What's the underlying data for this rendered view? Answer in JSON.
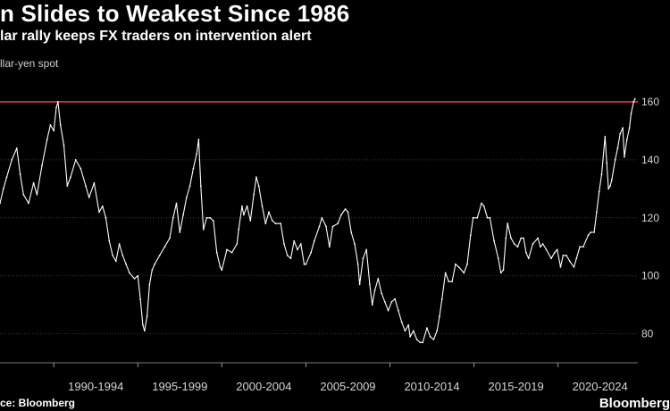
{
  "header": {
    "title": "n Slides to Weakest Since 1986",
    "subtitle": "lar rally keeps FX traders on intervention alert",
    "series_label": "llar-yen spot"
  },
  "footer": {
    "source": "ce: Bloomberg",
    "brand": "Bloomberg"
  },
  "colors": {
    "background": "#000000",
    "line": "#ffffff",
    "reference_line": "#e8364f",
    "grid": "#3a3a3a",
    "axis_text": "#d6d6d6"
  },
  "chart_data": {
    "type": "line",
    "title": "",
    "xlabel": "",
    "ylabel": "",
    "x_range": [
      1986.8,
      2024.75
    ],
    "ylim": [
      70,
      168
    ],
    "y_ticks": [
      {
        "value": 80,
        "label": "80"
      },
      {
        "value": 100,
        "label": "100"
      },
      {
        "value": 120,
        "label": "120"
      },
      {
        "value": 140,
        "label": "140"
      },
      {
        "value": 160,
        "label": "160"
      }
    ],
    "x_tick_marks": [
      1990,
      1995,
      2000,
      2005,
      2010,
      2015,
      2020
    ],
    "x_categories": [
      {
        "label": "1990-1994",
        "start": 1990,
        "end": 1995
      },
      {
        "label": "1995-1999",
        "start": 1995,
        "end": 2000
      },
      {
        "label": "2000-2004",
        "start": 2000,
        "end": 2005
      },
      {
        "label": "2005-2009",
        "start": 2005,
        "end": 2010
      },
      {
        "label": "2010-2014",
        "start": 2010,
        "end": 2015
      },
      {
        "label": "2015-2019",
        "start": 2015,
        "end": 2020
      },
      {
        "label": "2020-2024",
        "start": 2020,
        "end": 2025
      }
    ],
    "reference_line": {
      "value": 160
    },
    "grid": true,
    "legend": "none",
    "series": [
      {
        "values": [
          [
            1986.8,
            125
          ],
          [
            1987.0,
            130
          ],
          [
            1987.2,
            134
          ],
          [
            1987.5,
            140
          ],
          [
            1987.8,
            144
          ],
          [
            1988.0,
            135
          ],
          [
            1988.2,
            128
          ],
          [
            1988.5,
            125
          ],
          [
            1988.8,
            132
          ],
          [
            1989.0,
            128
          ],
          [
            1989.3,
            138
          ],
          [
            1989.6,
            147
          ],
          [
            1989.8,
            152
          ],
          [
            1990.0,
            150
          ],
          [
            1990.15,
            158
          ],
          [
            1990.25,
            160
          ],
          [
            1990.4,
            152
          ],
          [
            1990.6,
            145
          ],
          [
            1990.8,
            131
          ],
          [
            1991.0,
            134
          ],
          [
            1991.3,
            140
          ],
          [
            1991.6,
            137
          ],
          [
            1991.9,
            131
          ],
          [
            1992.1,
            127
          ],
          [
            1992.4,
            132
          ],
          [
            1992.7,
            122
          ],
          [
            1992.9,
            124
          ],
          [
            1993.1,
            120
          ],
          [
            1993.3,
            112
          ],
          [
            1993.5,
            107
          ],
          [
            1993.7,
            105
          ],
          [
            1993.9,
            111
          ],
          [
            1994.1,
            107
          ],
          [
            1994.3,
            104
          ],
          [
            1994.5,
            101
          ],
          [
            1994.8,
            99
          ],
          [
            1995.0,
            100
          ],
          [
            1995.15,
            92
          ],
          [
            1995.3,
            83
          ],
          [
            1995.4,
            81
          ],
          [
            1995.55,
            86
          ],
          [
            1995.7,
            97
          ],
          [
            1995.85,
            102
          ],
          [
            1996.0,
            104
          ],
          [
            1996.3,
            107
          ],
          [
            1996.6,
            110
          ],
          [
            1996.9,
            113
          ],
          [
            1997.1,
            120
          ],
          [
            1997.3,
            125
          ],
          [
            1997.5,
            115
          ],
          [
            1997.7,
            121
          ],
          [
            1997.9,
            127
          ],
          [
            1998.1,
            131
          ],
          [
            1998.3,
            137
          ],
          [
            1998.5,
            142
          ],
          [
            1998.62,
            147
          ],
          [
            1998.75,
            131
          ],
          [
            1998.9,
            116
          ],
          [
            1999.1,
            120
          ],
          [
            1999.3,
            120
          ],
          [
            1999.5,
            119
          ],
          [
            1999.7,
            108
          ],
          [
            1999.9,
            103
          ],
          [
            2000.0,
            102
          ],
          [
            2000.3,
            109
          ],
          [
            2000.6,
            108
          ],
          [
            2000.9,
            111
          ],
          [
            2001.0,
            116
          ],
          [
            2001.2,
            124
          ],
          [
            2001.3,
            121
          ],
          [
            2001.5,
            124
          ],
          [
            2001.7,
            119
          ],
          [
            2001.9,
            128
          ],
          [
            2002.05,
            134
          ],
          [
            2002.2,
            131
          ],
          [
            2002.4,
            124
          ],
          [
            2002.6,
            118
          ],
          [
            2002.8,
            122
          ],
          [
            2003.0,
            119
          ],
          [
            2003.2,
            118
          ],
          [
            2003.5,
            118
          ],
          [
            2003.7,
            111
          ],
          [
            2003.9,
            107
          ],
          [
            2004.1,
            106
          ],
          [
            2004.3,
            112
          ],
          [
            2004.5,
            109
          ],
          [
            2004.7,
            111
          ],
          [
            2004.9,
            104
          ],
          [
            2005.0,
            104
          ],
          [
            2005.3,
            108
          ],
          [
            2005.5,
            112
          ],
          [
            2005.8,
            117
          ],
          [
            2005.95,
            120
          ],
          [
            2006.2,
            117
          ],
          [
            2006.4,
            110
          ],
          [
            2006.6,
            117
          ],
          [
            2006.9,
            118
          ],
          [
            2007.1,
            121
          ],
          [
            2007.35,
            123
          ],
          [
            2007.5,
            122
          ],
          [
            2007.7,
            115
          ],
          [
            2007.9,
            111
          ],
          [
            2008.1,
            104
          ],
          [
            2008.2,
            97
          ],
          [
            2008.4,
            106
          ],
          [
            2008.6,
            109
          ],
          [
            2008.8,
            97
          ],
          [
            2008.95,
            90
          ],
          [
            2009.1,
            95
          ],
          [
            2009.3,
            99
          ],
          [
            2009.5,
            94
          ],
          [
            2009.7,
            91
          ],
          [
            2009.9,
            88
          ],
          [
            2010.1,
            91
          ],
          [
            2010.3,
            92
          ],
          [
            2010.5,
            88
          ],
          [
            2010.7,
            84
          ],
          [
            2010.9,
            81
          ],
          [
            2011.1,
            83
          ],
          [
            2011.2,
            79
          ],
          [
            2011.4,
            81
          ],
          [
            2011.6,
            78
          ],
          [
            2011.8,
            77
          ],
          [
            2011.95,
            77
          ],
          [
            2012.2,
            82
          ],
          [
            2012.4,
            79
          ],
          [
            2012.6,
            78
          ],
          [
            2012.8,
            81
          ],
          [
            2012.95,
            86
          ],
          [
            2013.1,
            92
          ],
          [
            2013.3,
            101
          ],
          [
            2013.5,
            98
          ],
          [
            2013.7,
            98
          ],
          [
            2013.9,
            104
          ],
          [
            2014.1,
            103
          ],
          [
            2014.4,
            101
          ],
          [
            2014.6,
            104
          ],
          [
            2014.8,
            114
          ],
          [
            2014.95,
            120
          ],
          [
            2015.2,
            120
          ],
          [
            2015.45,
            125
          ],
          [
            2015.6,
            124
          ],
          [
            2015.8,
            120
          ],
          [
            2015.95,
            120
          ],
          [
            2016.2,
            112
          ],
          [
            2016.45,
            106
          ],
          [
            2016.6,
            101
          ],
          [
            2016.75,
            102
          ],
          [
            2016.9,
            113
          ],
          [
            2017.0,
            118
          ],
          [
            2017.2,
            113
          ],
          [
            2017.4,
            111
          ],
          [
            2017.6,
            110
          ],
          [
            2017.8,
            113
          ],
          [
            2017.95,
            113
          ],
          [
            2018.1,
            108
          ],
          [
            2018.25,
            106
          ],
          [
            2018.5,
            111
          ],
          [
            2018.8,
            113
          ],
          [
            2018.95,
            110
          ],
          [
            2019.1,
            111
          ],
          [
            2019.3,
            109
          ],
          [
            2019.6,
            106
          ],
          [
            2019.8,
            108
          ],
          [
            2019.95,
            109
          ],
          [
            2020.15,
            103
          ],
          [
            2020.3,
            107
          ],
          [
            2020.5,
            107
          ],
          [
            2020.7,
            105
          ],
          [
            2020.95,
            103
          ],
          [
            2021.1,
            106
          ],
          [
            2021.3,
            110
          ],
          [
            2021.5,
            110
          ],
          [
            2021.8,
            114
          ],
          [
            2021.95,
            115
          ],
          [
            2022.15,
            115
          ],
          [
            2022.3,
            122
          ],
          [
            2022.45,
            129
          ],
          [
            2022.6,
            135
          ],
          [
            2022.8,
            148
          ],
          [
            2022.9,
            139
          ],
          [
            2023.0,
            130
          ],
          [
            2023.1,
            131
          ],
          [
            2023.2,
            133
          ],
          [
            2023.4,
            140
          ],
          [
            2023.55,
            144
          ],
          [
            2023.7,
            149
          ],
          [
            2023.85,
            151
          ],
          [
            2023.95,
            141
          ],
          [
            2024.1,
            147
          ],
          [
            2024.25,
            151
          ],
          [
            2024.35,
            156
          ],
          [
            2024.5,
            160
          ],
          [
            2024.58,
            161
          ]
        ]
      }
    ]
  }
}
